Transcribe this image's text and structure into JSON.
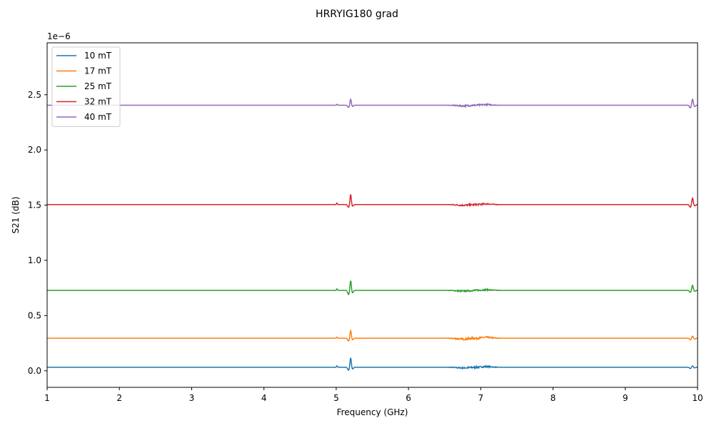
{
  "chart_data": {
    "type": "line",
    "title": "HRRYIG180 grad",
    "xlabel": "Frequency (GHz)",
    "ylabel": "S21 (dB)",
    "y_scale_label": "1e−6",
    "xlim": [
      1,
      10
    ],
    "ylim": [
      -0.15,
      2.97
    ],
    "x_ticks": [
      "1",
      "2",
      "3",
      "4",
      "5",
      "6",
      "7",
      "8",
      "9",
      "10"
    ],
    "x_tick_values": [
      1,
      2,
      3,
      4,
      5,
      6,
      7,
      8,
      9,
      10
    ],
    "y_ticks": [
      "0.0",
      "0.5",
      "1.0",
      "1.5",
      "2.0",
      "2.5"
    ],
    "y_tick_values": [
      0.0,
      0.5,
      1.0,
      1.5,
      2.0,
      2.5
    ],
    "grid": false,
    "legend_position": "top-left",
    "series": [
      {
        "name": "10 mT",
        "color": "#1f77b4",
        "baseline": 0.032,
        "features": {
          "peak_5_2": 0.12,
          "dip_5_17": 0.005,
          "peak_9_93": 0.045,
          "dip_9_9": 0.02,
          "noise_6_7": 0.015
        }
      },
      {
        "name": "17 mT",
        "color": "#ff7f0e",
        "baseline": 0.295,
        "features": {
          "peak_5_2": 0.365,
          "dip_5_17": 0.27,
          "peak_9_93": 0.315,
          "dip_9_9": 0.28,
          "noise_6_7": 0.02
        }
      },
      {
        "name": "25 mT",
        "color": "#2ca02c",
        "baseline": 0.728,
        "features": {
          "peak_5_2": 0.82,
          "dip_5_17": 0.69,
          "peak_9_93": 0.775,
          "dip_9_9": 0.71,
          "noise_6_7": 0.015
        }
      },
      {
        "name": "32 mT",
        "color": "#d62728",
        "baseline": 1.505,
        "features": {
          "peak_5_2": 1.6,
          "dip_5_17": 1.48,
          "peak_9_93": 1.565,
          "dip_9_9": 1.48,
          "noise_6_7": 0.015
        }
      },
      {
        "name": "40 mT",
        "color": "#9467bd",
        "baseline": 2.405,
        "features": {
          "peak_5_2": 2.46,
          "dip_5_17": 2.385,
          "peak_9_93": 2.46,
          "dip_9_9": 2.38,
          "noise_6_7": 0.015
        }
      }
    ]
  }
}
